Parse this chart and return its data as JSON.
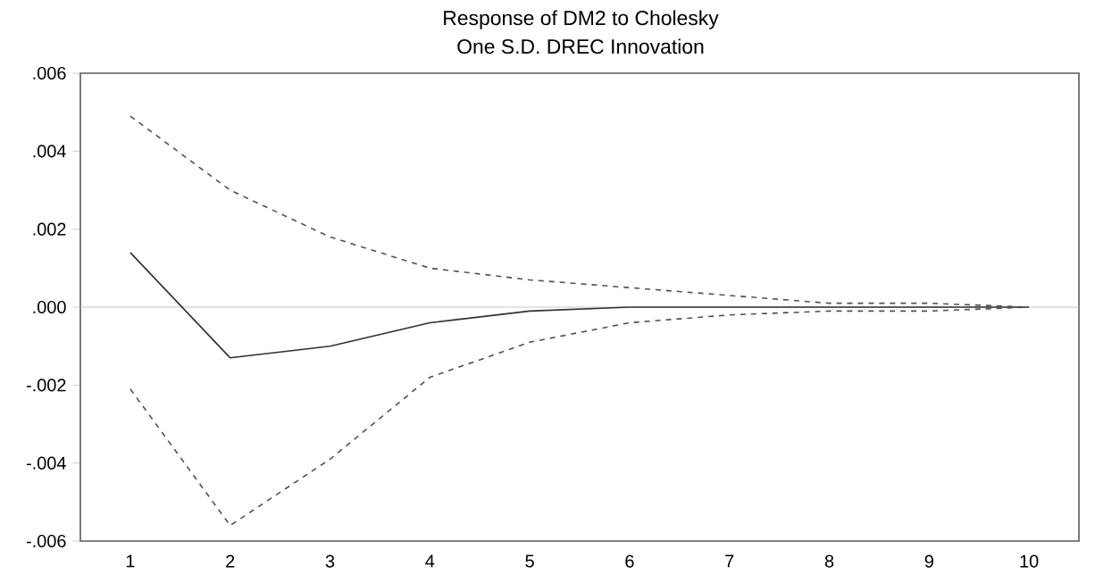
{
  "chart_data": {
    "type": "line",
    "title": "Response of DM2 to Cholesky",
    "subtitle": "One S.D. DREC Innovation",
    "categories": [
      "1",
      "2",
      "3",
      "4",
      "5",
      "6",
      "7",
      "8",
      "9",
      "10"
    ],
    "series": [
      {
        "color": "#303030",
        "line_style": "solid",
        "values": [
          0.0014,
          -0.0013,
          -0.001,
          -0.0004,
          -0.0001,
          0.0,
          0.0,
          0.0,
          0.0,
          0.0
        ]
      },
      {
        "color": "#505050",
        "line_style": "dashed",
        "values": [
          0.0049,
          0.003,
          0.0018,
          0.001,
          0.0007,
          0.0005,
          0.0003,
          0.0001,
          0.0001,
          0.0
        ]
      },
      {
        "color": "#505050",
        "line_style": "dashed",
        "values": [
          -0.0021,
          -0.0056,
          -0.0039,
          -0.0018,
          -0.0009,
          -0.0004,
          -0.0002,
          -0.0001,
          -0.0001,
          0.0
        ]
      }
    ],
    "ylim": [
      -0.006,
      0.006
    ],
    "yticks": [
      {
        "value": -0.006,
        "label": "-.006"
      },
      {
        "value": -0.004,
        "label": "-.004"
      },
      {
        "value": -0.002,
        "label": "-.002"
      },
      {
        "value": 0,
        "label": ".000"
      },
      {
        "value": 0.002,
        "label": ".002"
      },
      {
        "value": 0.004,
        "label": ".004"
      },
      {
        "value": 0.006,
        "label": ".006"
      }
    ],
    "ref_lines": [
      {
        "axis": "y",
        "value": 0,
        "color": "#c8c8c8"
      }
    ],
    "grid": false,
    "marker": "none"
  }
}
